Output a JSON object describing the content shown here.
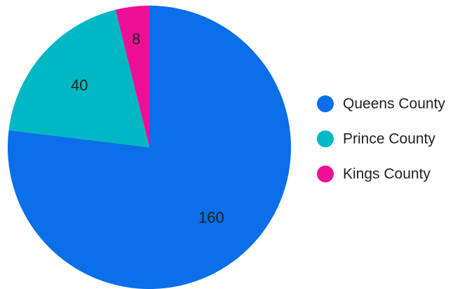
{
  "chart_data": {
    "type": "pie",
    "title": "",
    "slices": [
      {
        "label": "Queens County",
        "value": 160,
        "color": "#0a6fe8"
      },
      {
        "label": "Prince County",
        "value": 40,
        "color": "#00b8c4"
      },
      {
        "label": "Kings County",
        "value": 8,
        "color": "#ee0f96"
      }
    ],
    "start": "top",
    "direction": "clockwise",
    "legend_position": "right"
  }
}
